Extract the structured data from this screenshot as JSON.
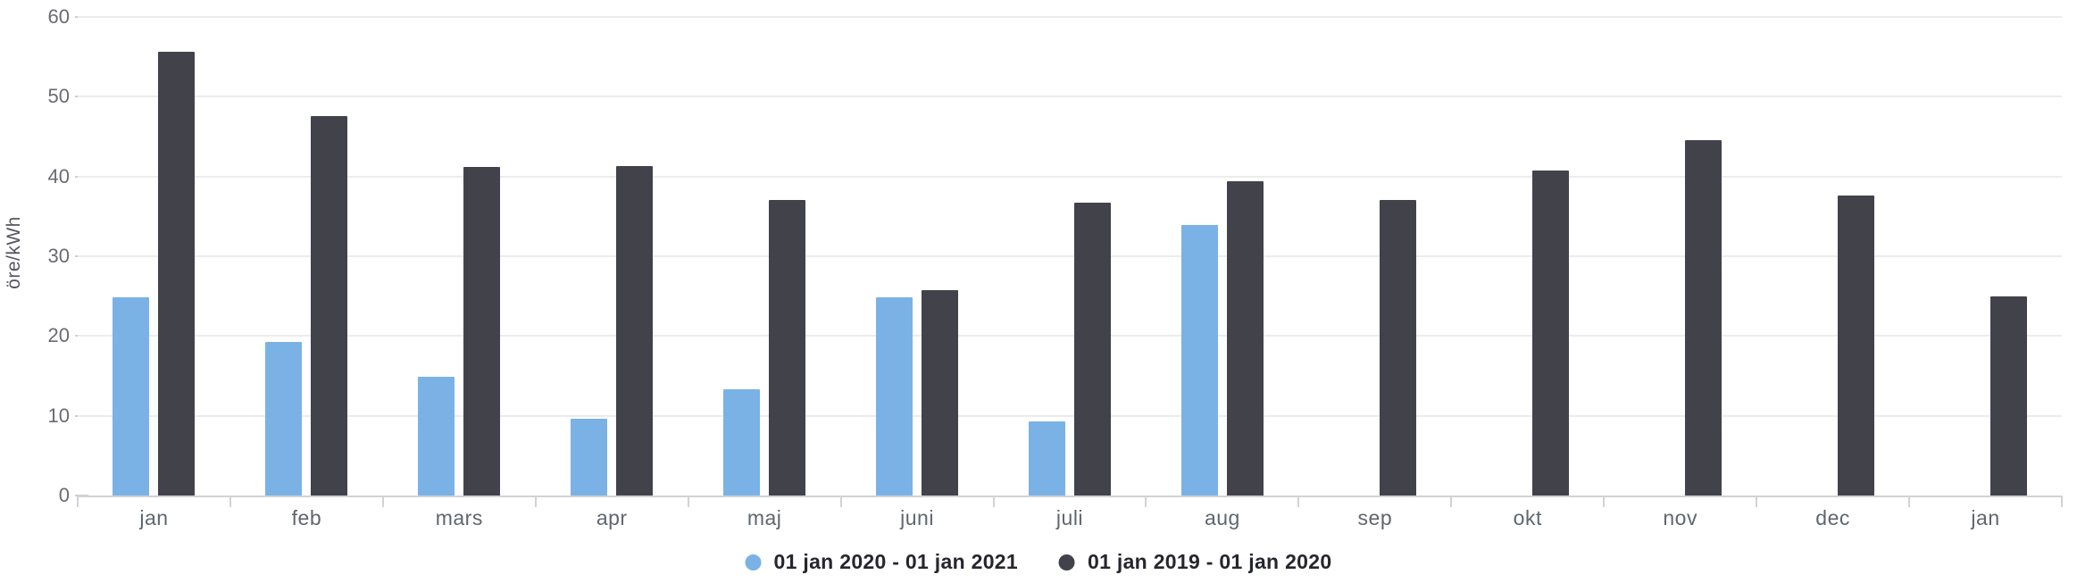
{
  "chart_data": {
    "type": "bar",
    "title": "",
    "xlabel": "",
    "ylabel": "öre/kWh",
    "ylim": [
      0,
      60
    ],
    "y_ticks": [
      0,
      10,
      20,
      30,
      40,
      50,
      60
    ],
    "grid": true,
    "legend_position": "bottom",
    "categories": [
      "jan",
      "feb",
      "mars",
      "apr",
      "maj",
      "juni",
      "juli",
      "aug",
      "sep",
      "okt",
      "nov",
      "dec",
      "jan"
    ],
    "series": [
      {
        "name": "01 jan 2020 - 01 jan 2021",
        "color": "#7ab2e5",
        "values": [
          24.8,
          19.2,
          14.9,
          9.6,
          13.3,
          24.9,
          9.3,
          33.9,
          null,
          null,
          null,
          null,
          null
        ]
      },
      {
        "name": "01 jan 2019 - 01 jan 2020",
        "color": "#42424b",
        "values": [
          55.6,
          47.6,
          41.2,
          41.3,
          37.1,
          25.8,
          36.7,
          39.4,
          37.0,
          40.7,
          44.5,
          37.6,
          25.0
        ]
      }
    ]
  },
  "colors": {
    "gridline": "#ececee",
    "axis_line": "#d2d2d6",
    "axis_tick": "#cfcfd3",
    "y_tick_text": "#6a6a72",
    "month_text": "#5f666e",
    "legend_text": "#26262e",
    "axis_title_text": "#55555e",
    "background": "#ffffff"
  }
}
